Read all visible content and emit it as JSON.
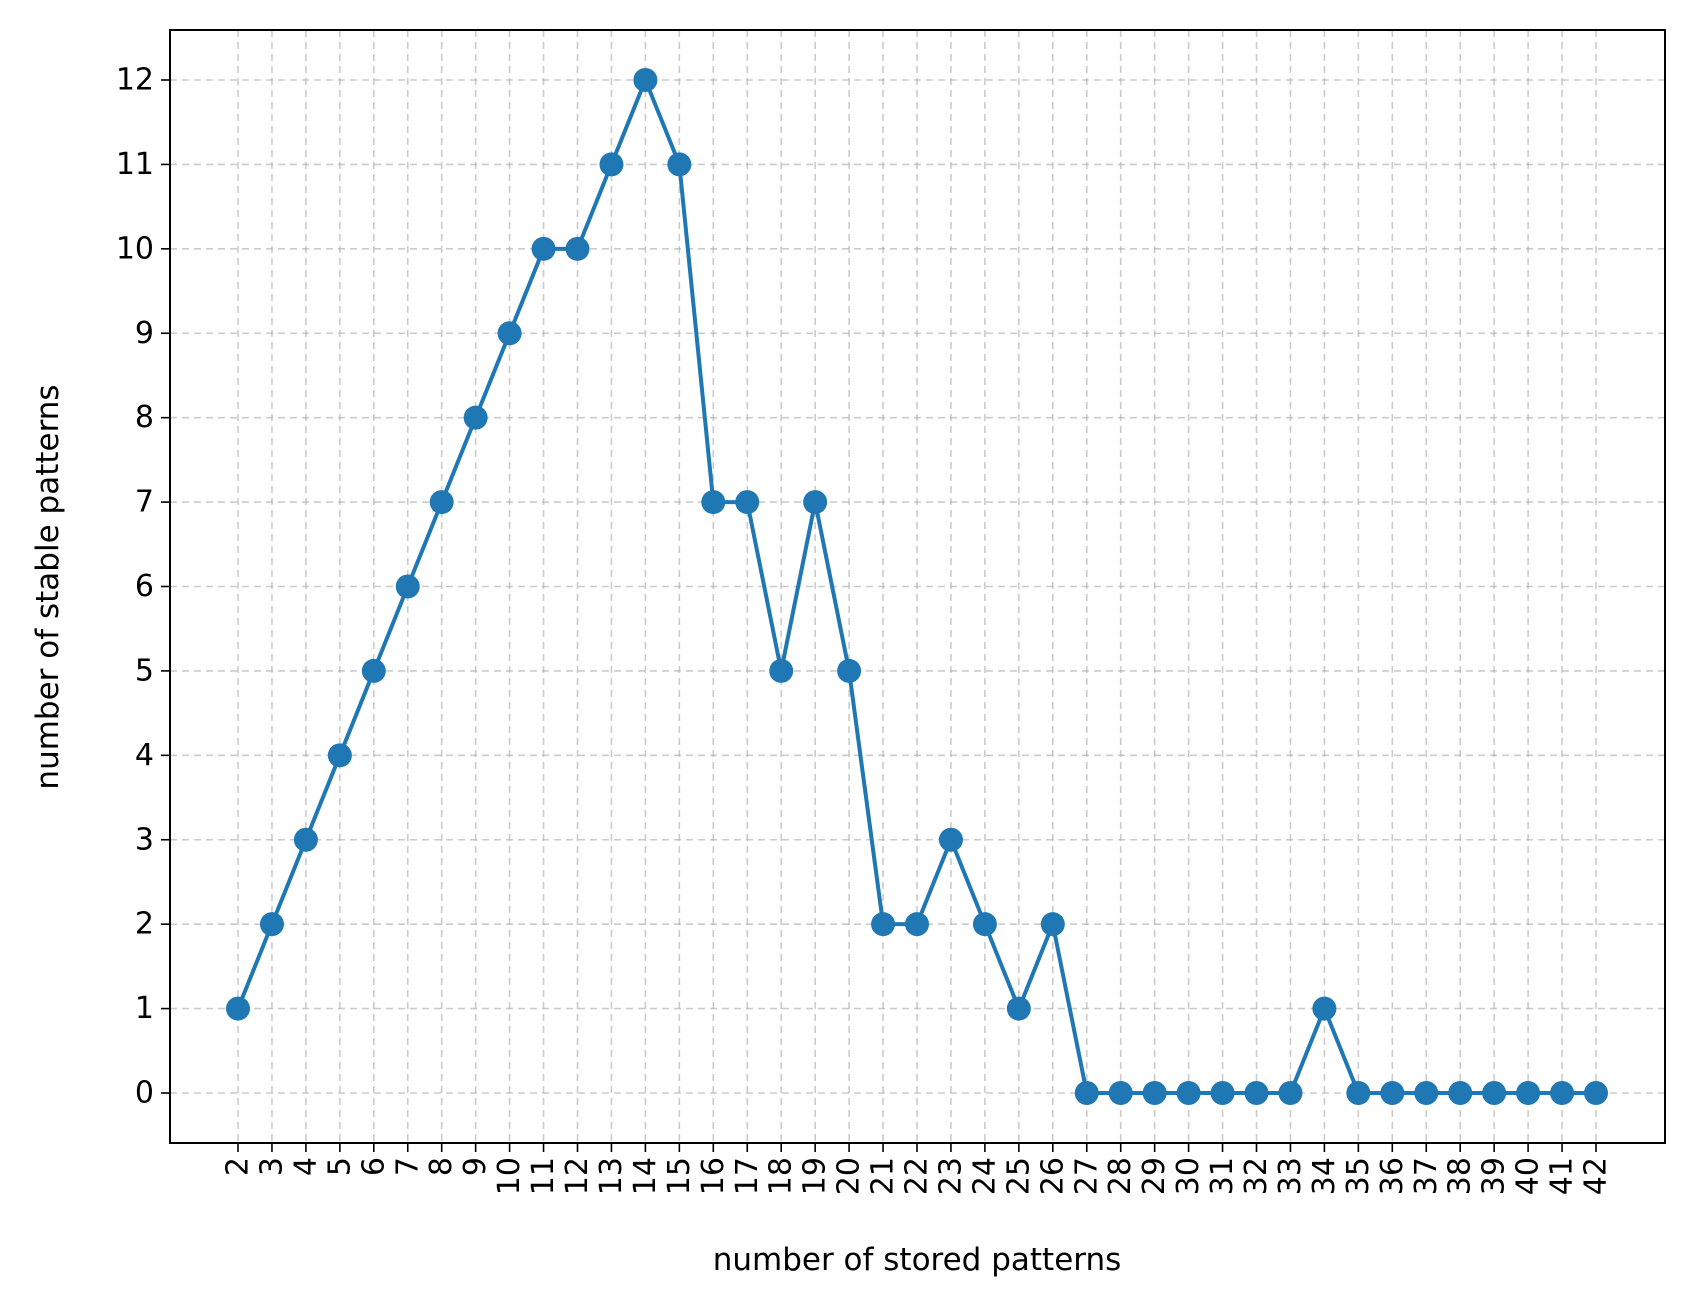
{
  "chart_data": {
    "type": "line",
    "title": "",
    "xlabel": "number of stored patterns",
    "ylabel": "number of stable patterns",
    "x": [
      2,
      3,
      4,
      5,
      6,
      7,
      8,
      9,
      10,
      11,
      12,
      13,
      14,
      15,
      16,
      17,
      18,
      19,
      20,
      21,
      22,
      23,
      24,
      25,
      26,
      27,
      28,
      29,
      30,
      31,
      32,
      33,
      34,
      35,
      36,
      37,
      38,
      39,
      40,
      41,
      42
    ],
    "series": [
      {
        "name": "",
        "values": [
          1,
          2,
          3,
          4,
          5,
          6,
          7,
          8,
          9,
          10,
          10,
          11,
          12,
          11,
          7,
          7,
          5,
          7,
          5,
          2,
          2,
          3,
          2,
          1,
          2,
          0,
          0,
          0,
          0,
          0,
          0,
          0,
          1,
          0,
          0,
          0,
          0,
          0,
          0,
          0,
          0
        ],
        "color": "#1f77b4",
        "marker": "circle"
      }
    ],
    "xticks": [
      "2",
      "3",
      "4",
      "5",
      "6",
      "7",
      "8",
      "9",
      "10",
      "11",
      "12",
      "13",
      "14",
      "15",
      "16",
      "17",
      "18",
      "19",
      "20",
      "21",
      "22",
      "23",
      "24",
      "25",
      "26",
      "27",
      "28",
      "29",
      "30",
      "31",
      "32",
      "33",
      "34",
      "35",
      "36",
      "37",
      "38",
      "39",
      "40",
      "41",
      "42"
    ],
    "yticks": [
      "0",
      "1",
      "2",
      "3",
      "4",
      "5",
      "6",
      "7",
      "8",
      "9",
      "10",
      "11",
      "12"
    ],
    "xlim": [
      -0.05,
      42.05
    ],
    "ylim": [
      -0.6,
      12.6
    ],
    "grid": true,
    "legend": "none"
  }
}
